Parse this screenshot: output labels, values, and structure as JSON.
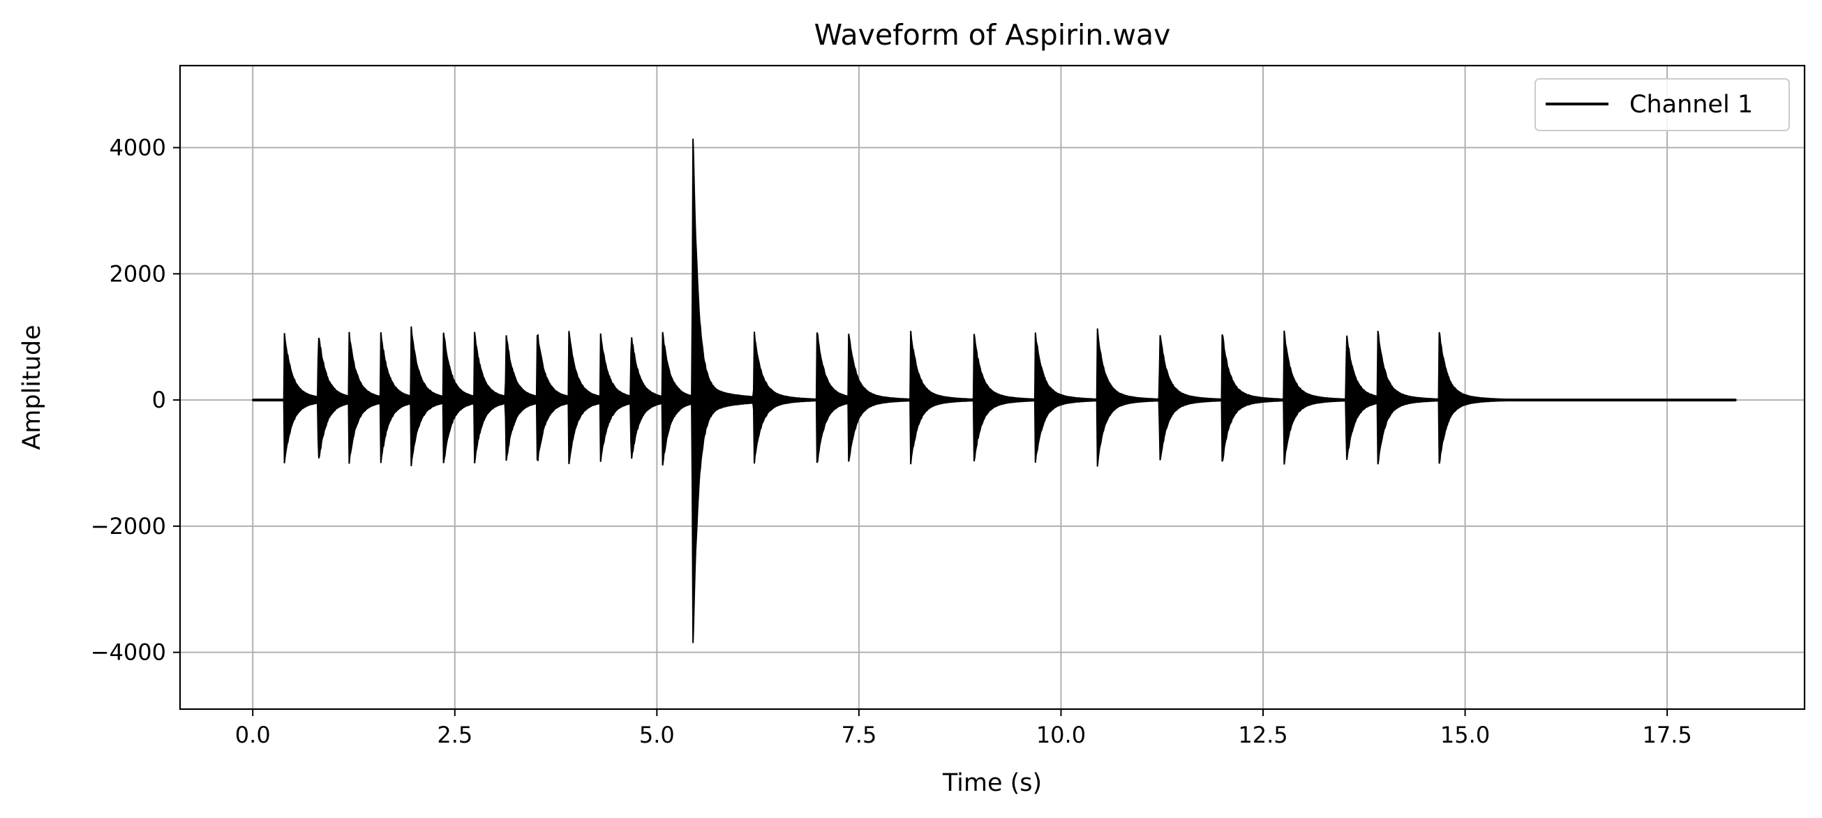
{
  "chart_data": {
    "type": "line",
    "title": "Waveform of Aspirin.wav",
    "xlabel": "Time (s)",
    "ylabel": "Amplitude",
    "xlim": [
      -0.9,
      19.2
    ],
    "ylim": [
      -4900,
      5300
    ],
    "x_ticks": [
      0.0,
      2.5,
      5.0,
      7.5,
      10.0,
      12.5,
      15.0,
      17.5
    ],
    "x_tick_labels": [
      "0.0",
      "2.5",
      "5.0",
      "7.5",
      "10.0",
      "12.5",
      "15.0",
      "17.5"
    ],
    "y_ticks": [
      -4000,
      -2000,
      0,
      2000,
      4000
    ],
    "y_tick_labels": [
      "−4000",
      "−2000",
      "0",
      "2000",
      "4000"
    ],
    "grid": true,
    "legend_position": "top-right",
    "line_color": "#000000",
    "duration": 18.35,
    "series": [
      {
        "name": "Channel 1",
        "color": "#000000",
        "events": [
          {
            "t": 0.39,
            "peak": 1120,
            "trough": -1060
          },
          {
            "t": 0.81,
            "peak": 1140,
            "trough": -1070
          },
          {
            "t": 1.19,
            "peak": 1120,
            "trough": -1050
          },
          {
            "t": 1.58,
            "peak": 1160,
            "trough": -1080
          },
          {
            "t": 1.96,
            "peak": 1200,
            "trough": -1080
          },
          {
            "t": 2.36,
            "peak": 1130,
            "trough": -1060
          },
          {
            "t": 2.74,
            "peak": 1140,
            "trough": -1060
          },
          {
            "t": 3.13,
            "peak": 1140,
            "trough": -1070
          },
          {
            "t": 3.52,
            "peak": 1140,
            "trough": -1060
          },
          {
            "t": 3.91,
            "peak": 1140,
            "trough": -1060
          },
          {
            "t": 4.3,
            "peak": 1140,
            "trough": -1060
          },
          {
            "t": 4.68,
            "peak": 1120,
            "trough": -1050
          },
          {
            "t": 5.07,
            "peak": 1120,
            "trough": -1080
          },
          {
            "t": 5.44,
            "peak": 4750,
            "trough": -4420
          },
          {
            "t": 6.2,
            "peak": 1160,
            "trough": -1080
          },
          {
            "t": 6.98,
            "peak": 1160,
            "trough": -1080
          },
          {
            "t": 7.37,
            "peak": 1160,
            "trough": -1080
          },
          {
            "t": 8.14,
            "peak": 1140,
            "trough": -1060
          },
          {
            "t": 8.92,
            "peak": 1140,
            "trough": -1060
          },
          {
            "t": 9.68,
            "peak": 1140,
            "trough": -1060
          },
          {
            "t": 10.45,
            "peak": 1150,
            "trough": -1070
          },
          {
            "t": 11.22,
            "peak": 1150,
            "trough": -1070
          },
          {
            "t": 11.99,
            "peak": 1150,
            "trough": -1080
          },
          {
            "t": 12.76,
            "peak": 1140,
            "trough": -1060
          },
          {
            "t": 13.53,
            "peak": 1140,
            "trough": -1060
          },
          {
            "t": 13.92,
            "peak": 1140,
            "trough": -1060
          },
          {
            "t": 14.68,
            "peak": 1140,
            "trough": -1070
          }
        ]
      }
    ]
  }
}
